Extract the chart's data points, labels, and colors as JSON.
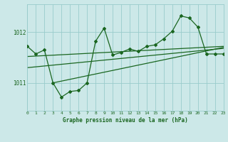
{
  "title": "Graphe pression niveau de la mer (hPa)",
  "bg_color": "#cce8e8",
  "grid_color": "#99cccc",
  "line_color": "#1a6620",
  "x_min": 0,
  "x_max": 23,
  "y_min": 1010.45,
  "y_max": 1012.55,
  "y_ticks": [
    1011,
    1012
  ],
  "main_x": [
    0,
    1,
    2,
    3,
    4,
    5,
    6,
    7,
    8,
    9,
    10,
    11,
    12,
    13,
    14,
    15,
    16,
    17,
    18,
    19,
    20,
    21,
    22,
    23
  ],
  "main_y": [
    1011.72,
    1011.57,
    1011.65,
    1011.0,
    1010.72,
    1010.83,
    1010.85,
    1011.0,
    1011.82,
    1012.08,
    1011.55,
    1011.6,
    1011.67,
    1011.62,
    1011.72,
    1011.75,
    1011.87,
    1012.02,
    1012.32,
    1012.28,
    1012.1,
    1011.57,
    1011.57,
    1011.57
  ],
  "trend1_x": [
    0,
    23
  ],
  "trend1_y": [
    1011.52,
    1011.72
  ],
  "trend2_x": [
    0,
    23
  ],
  "trend2_y": [
    1011.3,
    1011.68
  ],
  "trend3_x": [
    3,
    23
  ],
  "trend3_y": [
    1011.0,
    1011.7
  ]
}
